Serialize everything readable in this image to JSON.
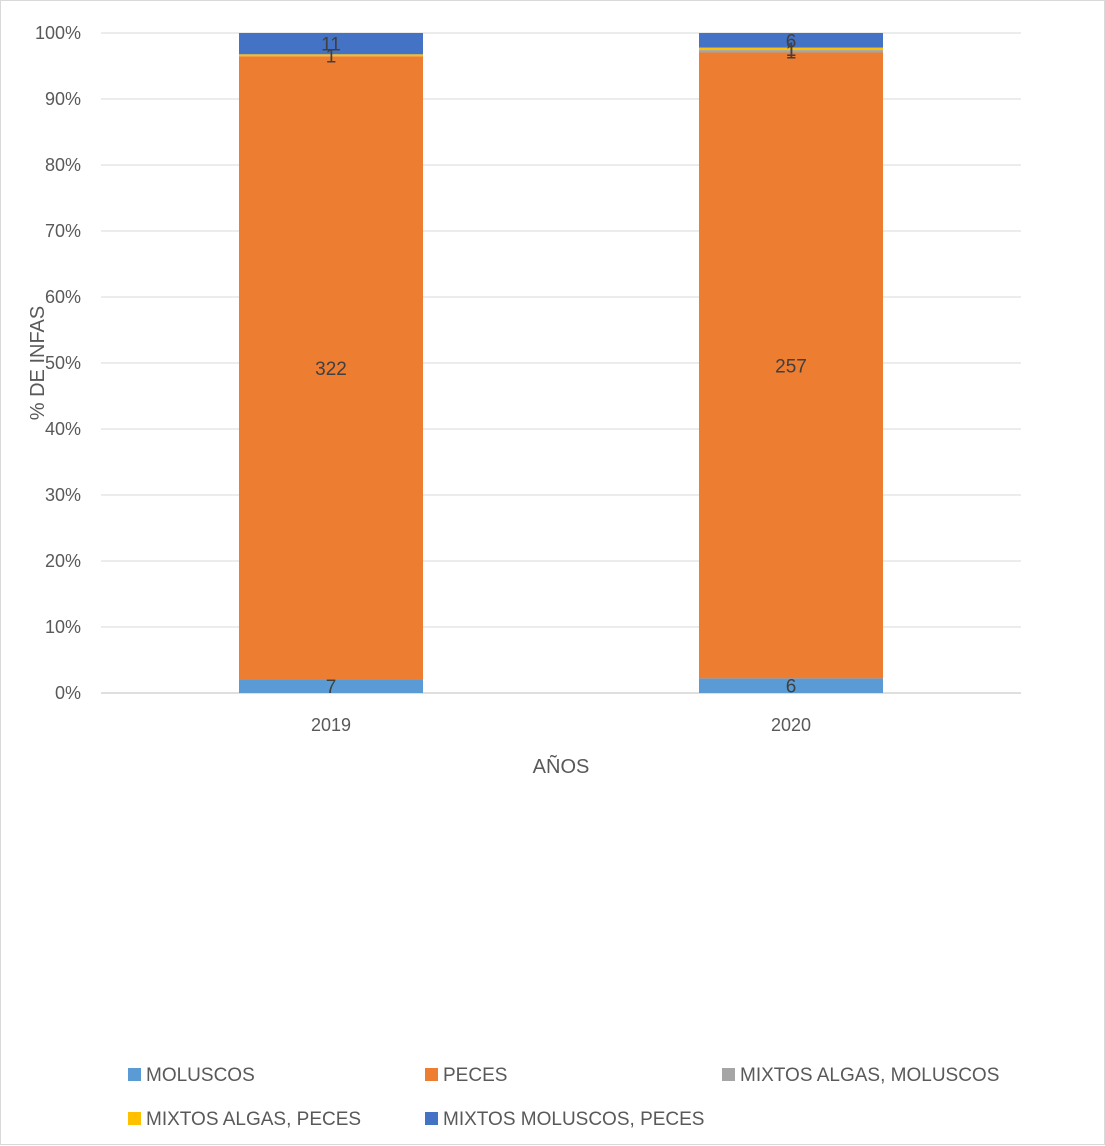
{
  "chart_data": {
    "type": "bar",
    "stacked": "percent",
    "categories": [
      "2019",
      "2020"
    ],
    "series": [
      {
        "name": "MOLUSCOS",
        "color": "#5b9bd5",
        "values": [
          7,
          6
        ]
      },
      {
        "name": "PECES",
        "color": "#ed7d31",
        "values": [
          322,
          257
        ]
      },
      {
        "name": "MIXTOS ALGAS, MOLUSCOS",
        "color": "#a5a5a5",
        "values": [
          0,
          1
        ]
      },
      {
        "name": "MIXTOS ALGAS, PECES",
        "color": "#ffc000",
        "values": [
          1,
          1
        ]
      },
      {
        "name": "MIXTOS MOLUSCOS, PECES",
        "color": "#4472c4",
        "values": [
          11,
          6
        ]
      }
    ],
    "xlabel": "AÑOS",
    "ylabel": "% DE INFAS",
    "yticks": [
      "0%",
      "10%",
      "20%",
      "30%",
      "40%",
      "50%",
      "60%",
      "70%",
      "80%",
      "90%",
      "100%"
    ],
    "ylim": [
      0,
      100
    ],
    "grid": true,
    "legend_position": "bottom"
  }
}
